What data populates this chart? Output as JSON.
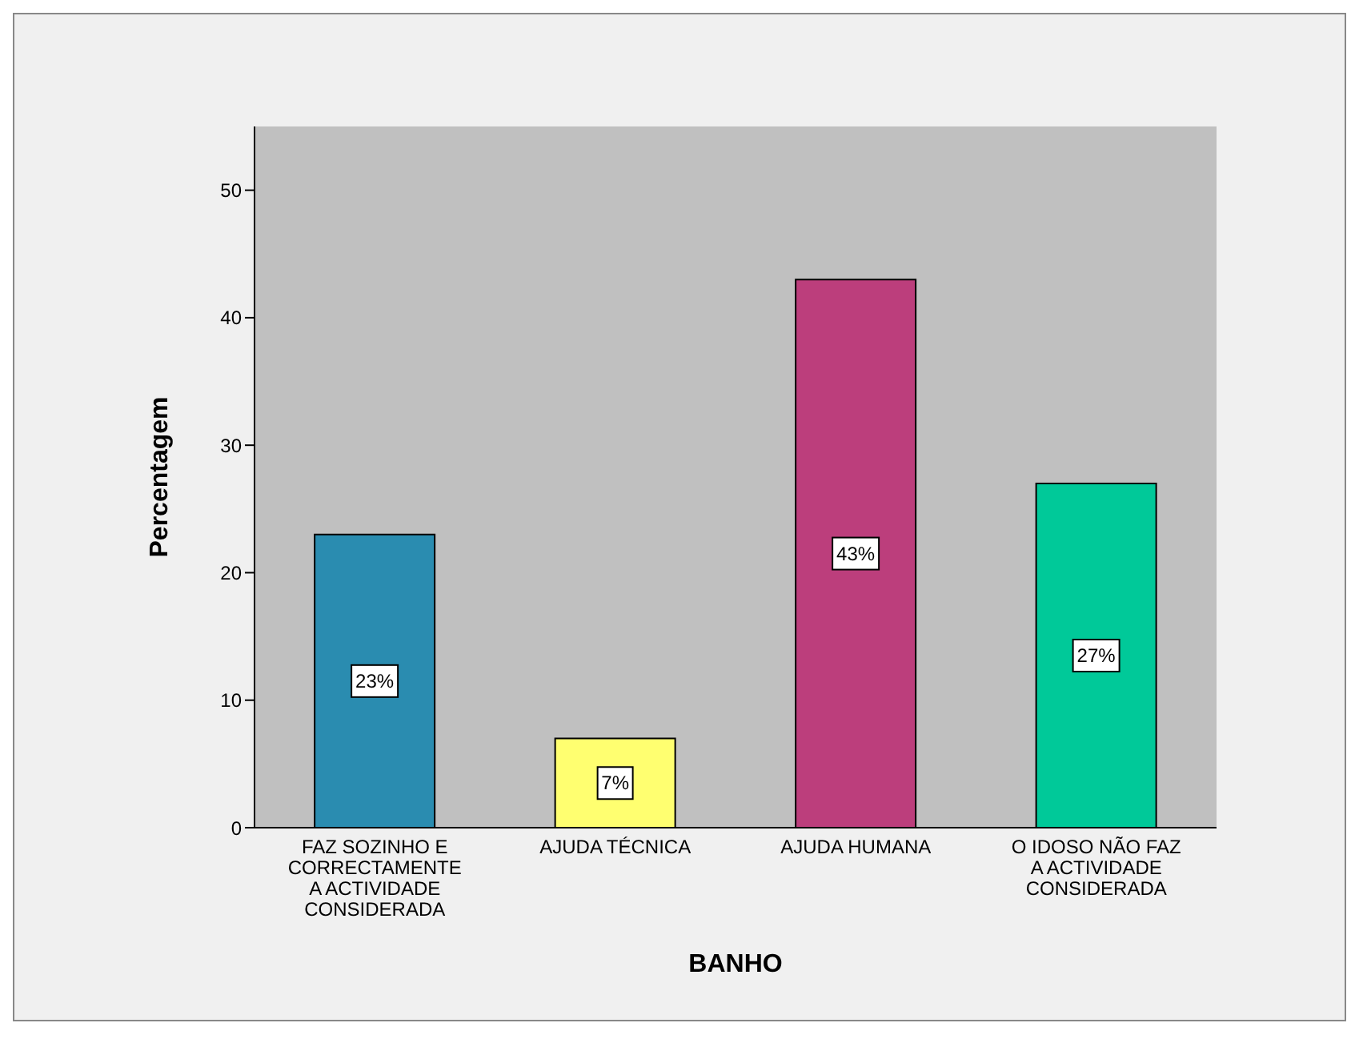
{
  "chart_data": {
    "type": "bar",
    "xlabel": "BANHO",
    "ylabel": "Percentagem",
    "categories": [
      "FAZ SOZINHO E CORRECTAMENTE A ACTIVIDADE CONSIDERADA",
      "AJUDA TÉCNICA",
      "AJUDA HUMANA",
      "O IDOSO NÃO FAZ A ACTIVIDADE CONSIDERADA"
    ],
    "values": [
      23,
      7,
      43,
      27
    ],
    "colors": [
      "#2a8cb0",
      "#ffff70",
      "#bc3e7c",
      "#00c999"
    ],
    "value_labels": [
      "23%",
      "7%",
      "43%",
      "27%"
    ],
    "ylim": [
      0,
      55
    ],
    "yticks": [
      0,
      10,
      20,
      30,
      40,
      50
    ],
    "grid": false
  }
}
